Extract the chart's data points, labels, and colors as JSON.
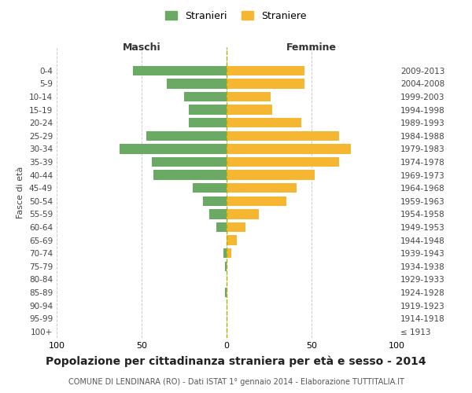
{
  "age_groups": [
    "100+",
    "95-99",
    "90-94",
    "85-89",
    "80-84",
    "75-79",
    "70-74",
    "65-69",
    "60-64",
    "55-59",
    "50-54",
    "45-49",
    "40-44",
    "35-39",
    "30-34",
    "25-29",
    "20-24",
    "15-19",
    "10-14",
    "5-9",
    "0-4"
  ],
  "birth_years": [
    "≤ 1913",
    "1914-1918",
    "1919-1923",
    "1924-1928",
    "1929-1933",
    "1934-1938",
    "1939-1943",
    "1944-1948",
    "1949-1953",
    "1954-1958",
    "1959-1963",
    "1964-1968",
    "1969-1973",
    "1974-1978",
    "1979-1983",
    "1984-1988",
    "1989-1993",
    "1994-1998",
    "1999-2003",
    "2004-2008",
    "2009-2013"
  ],
  "maschi": [
    0,
    0,
    0,
    1,
    0,
    1,
    2,
    0,
    6,
    10,
    14,
    20,
    43,
    44,
    63,
    47,
    22,
    22,
    25,
    35,
    55
  ],
  "femmine": [
    0,
    0,
    0,
    0,
    0,
    0,
    3,
    6,
    11,
    19,
    35,
    41,
    52,
    66,
    73,
    66,
    44,
    27,
    26,
    46,
    46
  ],
  "color_maschi": "#6aaa64",
  "color_femmine": "#f5b731",
  "title": "Popolazione per cittadinanza straniera per età e sesso - 2014",
  "subtitle": "COMUNE DI LENDINARA (RO) - Dati ISTAT 1° gennaio 2014 - Elaborazione TUTTITALIA.IT",
  "header_left": "Maschi",
  "header_right": "Femmine",
  "ylabel_left": "Fasce di età",
  "legend_maschi": "Stranieri",
  "legend_femmine": "Straniere",
  "xlim": 100,
  "background_color": "#ffffff",
  "grid_color": "#cccccc",
  "title_fontsize": 10,
  "subtitle_fontsize": 7
}
